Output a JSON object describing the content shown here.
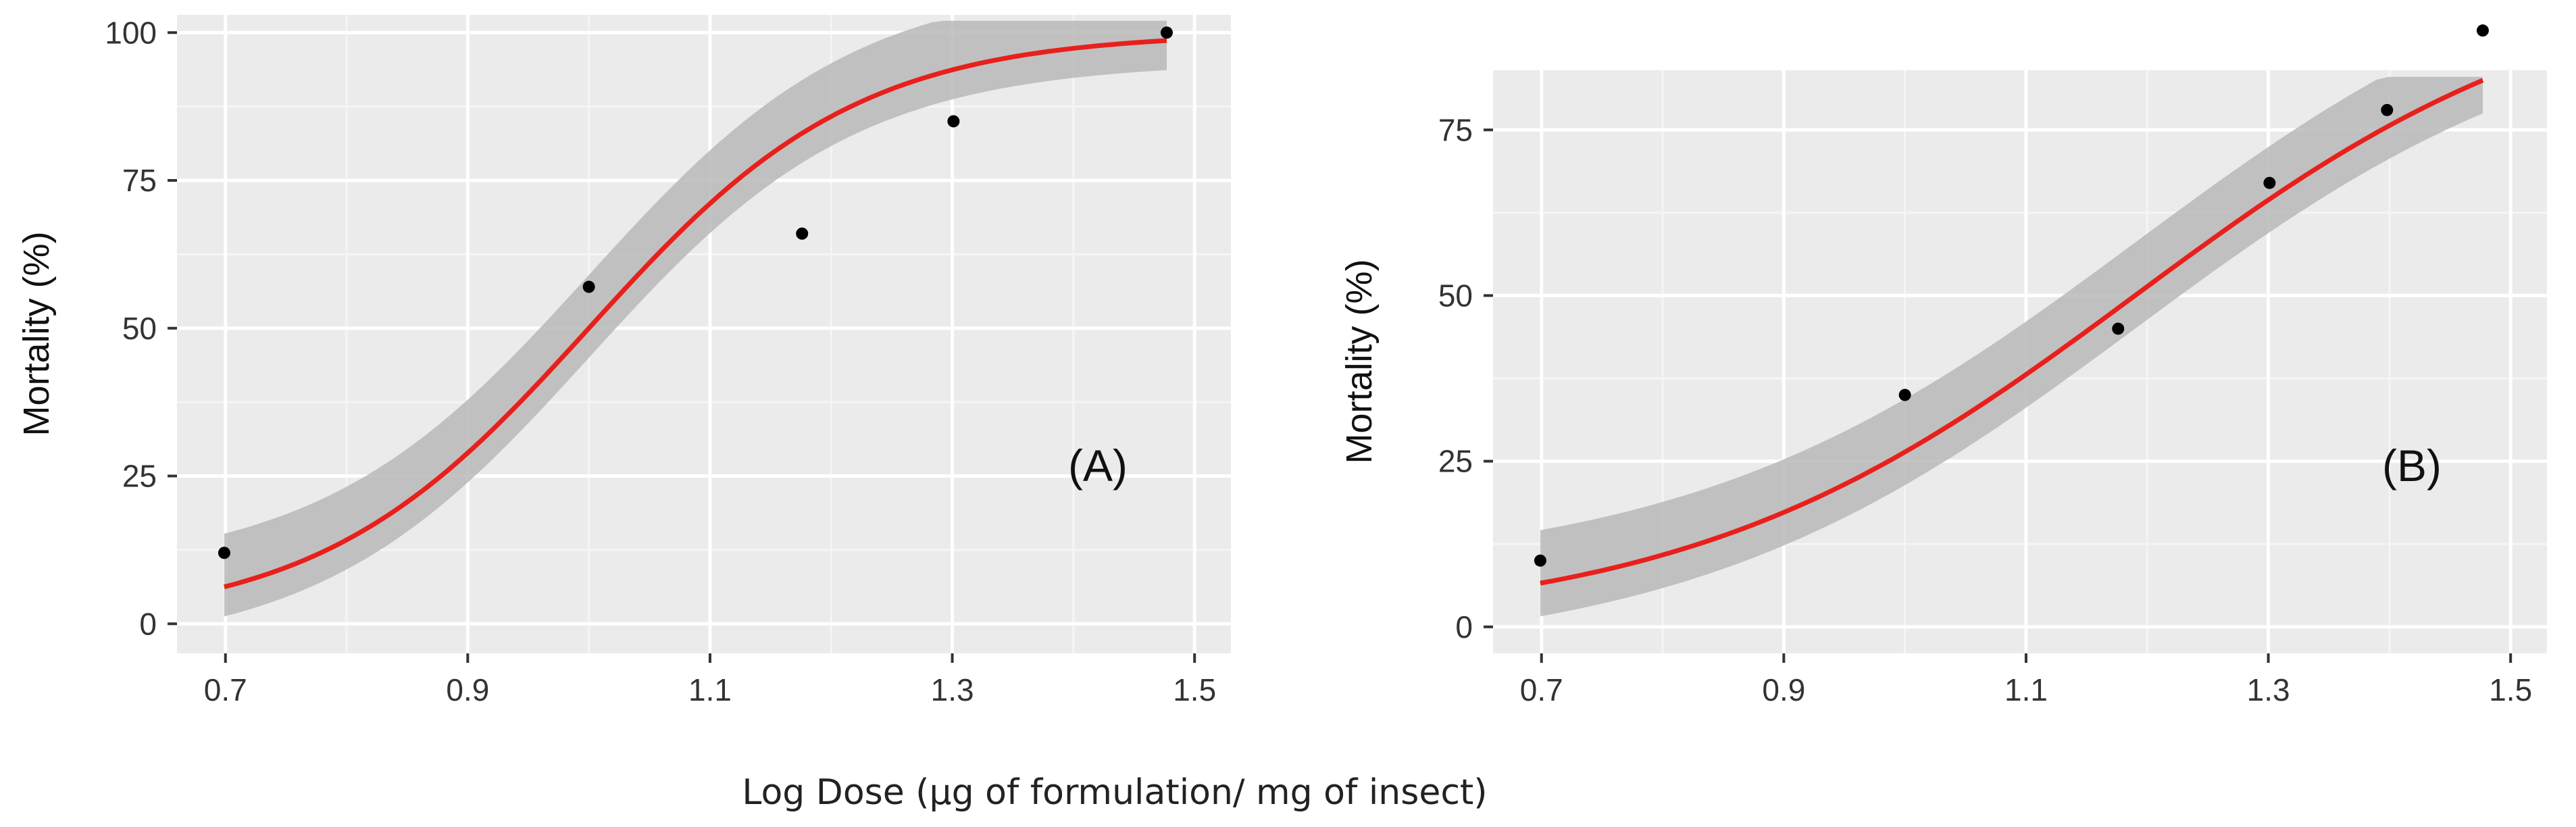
{
  "figure": {
    "shared_xlabel": "Log Dose (µg of formulation/ mg of insect)"
  },
  "chart_data": [
    {
      "type": "scatter",
      "panel_label": "(A)",
      "xlabel": "Log Dose (µg of formulation/ mg of insect)",
      "ylabel": "Mortality (%)",
      "xlim": [
        0.66,
        1.53
      ],
      "ylim": [
        -5,
        103
      ],
      "xticks": [
        0.7,
        0.9,
        1.1,
        1.3,
        1.5
      ],
      "xtick_labels": [
        "0.7",
        "0.9",
        "1.1",
        "1.3",
        "1.5"
      ],
      "yticks": [
        0,
        25,
        50,
        75,
        100
      ],
      "ytick_labels": [
        "0",
        "25",
        "50",
        "75",
        "100"
      ],
      "grid": true,
      "points": [
        {
          "x": 0.699,
          "y": 12
        },
        {
          "x": 1.0,
          "y": 57
        },
        {
          "x": 1.176,
          "y": 66
        },
        {
          "x": 1.301,
          "y": 85
        },
        {
          "x": 1.477,
          "y": 100
        }
      ],
      "fit": {
        "model": "logistic",
        "midpoint": 1.0,
        "slope": 9.0,
        "color": "#e8201c"
      },
      "band": {
        "lower_offset": 5,
        "upper_offset": 9,
        "color": "#b8b8b8"
      }
    },
    {
      "type": "scatter",
      "panel_label": "(B)",
      "xlabel": "Log Dose (µg of formulation/ mg of insect)",
      "ylabel": "Mortality (%)",
      "xlim": [
        0.66,
        1.53
      ],
      "ylim": [
        -4,
        84
      ],
      "xticks": [
        0.7,
        0.9,
        1.1,
        1.3,
        1.5
      ],
      "xtick_labels": [
        "0.7",
        "0.9",
        "1.1",
        "1.3",
        "1.5"
      ],
      "yticks": [
        0,
        25,
        50,
        75
      ],
      "ytick_labels": [
        "0",
        "25",
        "50",
        "75"
      ],
      "grid": true,
      "points": [
        {
          "x": 0.699,
          "y": 10
        },
        {
          "x": 1.0,
          "y": 35
        },
        {
          "x": 1.176,
          "y": 45
        },
        {
          "x": 1.301,
          "y": 67
        },
        {
          "x": 1.398,
          "y": 78
        },
        {
          "x": 1.477,
          "y": 90
        }
      ],
      "fit": {
        "model": "logistic",
        "midpoint": 1.19,
        "slope": 5.4,
        "color": "#e8201c"
      },
      "band": {
        "lower_offset": 5,
        "upper_offset": 8,
        "color": "#b8b8b8"
      }
    }
  ],
  "colors": {
    "panel_bg": "#ebebeb",
    "grid_major": "#ffffff",
    "grid_minor": "#f5f5f5",
    "point": "#000000"
  }
}
